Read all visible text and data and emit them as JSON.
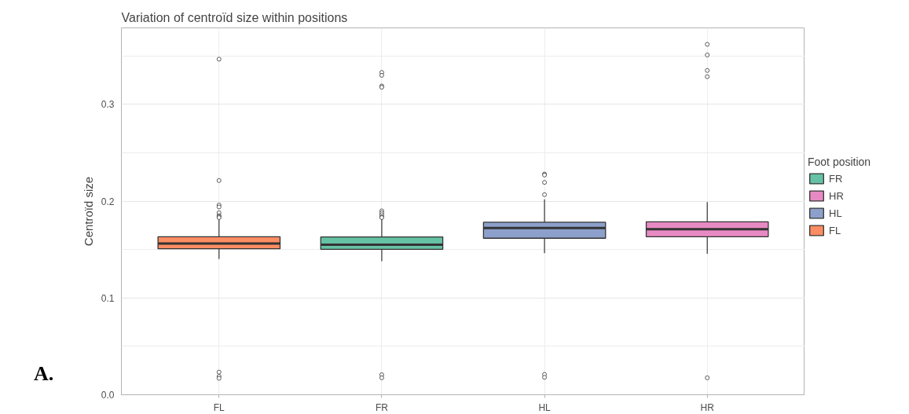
{
  "chart_data": {
    "type": "box",
    "title": "Variation of centroïd size within positions",
    "ylabel": "Centroïd size",
    "legend_title": "Foot position",
    "legend": "right",
    "grid": true,
    "categories": [
      "FL",
      "FR",
      "HL",
      "HR"
    ],
    "ylim": [
      0,
      0.379
    ],
    "yticks": [
      {
        "value": 0,
        "label": "0.0"
      },
      0.1,
      0.2,
      0.3,
      {
        "value": 0.05,
        "label": null
      },
      {
        "value": 0.15,
        "label": null
      },
      {
        "value": 0.25,
        "label": null
      },
      {
        "value": 0.35,
        "label": null
      }
    ],
    "annotations": [
      "A."
    ],
    "series": [
      {
        "name": "FR",
        "color": "#66c2a5",
        "x": [
          "FR"
        ],
        "boxes": [
          {
            "low": 0.138,
            "q1": 0.1503,
            "median": 0.155,
            "q3": 0.163,
            "high": 0.182,
            "outliers": [
              0.333,
              0.33,
              0.319,
              0.3177,
              0.19,
              0.188,
              0.186,
              0.184,
              0.183,
              0.0207,
              0.0175
            ]
          }
        ]
      },
      {
        "name": "HR",
        "color": "#e78ac3",
        "x": [
          "HR"
        ],
        "boxes": [
          {
            "low": 0.1457,
            "q1": 0.1633,
            "median": 0.1711,
            "q3": 0.1787,
            "high": 0.199,
            "outliers": [
              0.362,
              0.351,
              0.335,
              0.3286,
              0.0175
            ]
          }
        ]
      },
      {
        "name": "HL",
        "color": "#8da0cb",
        "x": [
          "HL"
        ],
        "boxes": [
          {
            "low": 0.1462,
            "q1": 0.1617,
            "median": 0.1722,
            "q3": 0.1782,
            "high": 0.2018,
            "outliers": [
              0.228,
              0.227,
              0.2194,
              0.2067,
              0.021,
              0.018
            ]
          }
        ]
      },
      {
        "name": "FL",
        "color": "#fc8d62",
        "x": [
          "FL"
        ],
        "boxes": [
          {
            "low": 0.1402,
            "q1": 0.1508,
            "median": 0.1563,
            "q3": 0.1633,
            "high": 0.182,
            "outliers": [
              0.3467,
              0.2213,
              0.196,
              0.194,
              0.188,
              0.185,
              0.184,
              0.183,
              0.0234,
              0.019,
              0.017
            ]
          }
        ]
      }
    ]
  }
}
